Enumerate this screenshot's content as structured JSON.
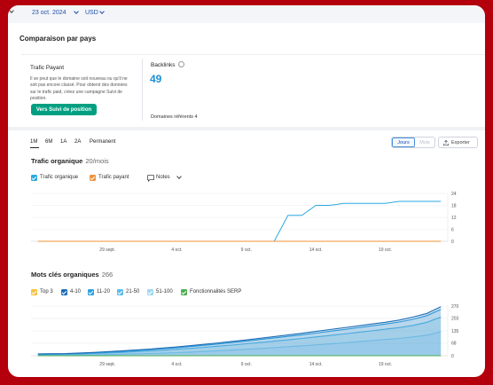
{
  "header": {
    "date": "23 oct. 2024",
    "currency": "USD"
  },
  "comparison": {
    "title": "Comparaison par pays"
  },
  "paid_traffic": {
    "title": "Trafic Payant",
    "description": "Il se peut que le domaine soit nouveau ou qu'il ne soit pas encore classé. Pour obtenir des données sur le trafic paid, créez une campagne Suivi de position.",
    "button_label": "Vers Suivi de position"
  },
  "backlinks": {
    "label": "Backlinks",
    "value": "49",
    "referring_label": "Domaines référents",
    "referring_value": "4"
  },
  "period_tabs": [
    "1M",
    "6M",
    "1A",
    "2A",
    "Permanent"
  ],
  "period_selected": "1M",
  "view_toggle": {
    "days": "Jours",
    "months": "Mois",
    "selected": "Jours"
  },
  "export_label": "Exporter",
  "traffic_chart": {
    "title": "Trafic organique",
    "subtitle": "20/mois",
    "legend": [
      {
        "label": "Trafic organique",
        "color": "#2aa8e0",
        "checked": true
      },
      {
        "label": "Trafic payant",
        "color": "#f0913a",
        "checked": true
      }
    ],
    "notes_label": "Notes"
  },
  "keywords_chart": {
    "title": "Mots clés organiques",
    "subtitle": "266",
    "legend": [
      {
        "label": "Top 3",
        "color": "#f5c242",
        "checked": true
      },
      {
        "label": "4-10",
        "color": "#1f6db5",
        "checked": true
      },
      {
        "label": "11-20",
        "color": "#2aa0de",
        "checked": true
      },
      {
        "label": "21-50",
        "color": "#5bbbe8",
        "checked": true
      },
      {
        "label": "51-100",
        "color": "#9fd8f2",
        "checked": true
      },
      {
        "label": "Fonctionnalités SERP",
        "color": "#4caf50",
        "checked": true
      }
    ]
  },
  "colors": {
    "accent": "#009f81",
    "link_blue": "#1a8fd6",
    "brand_frame": "#b3000c"
  },
  "chart_data": [
    {
      "type": "line",
      "title": "Trafic organique",
      "x_tick_labels": [
        "29 sept.",
        "4 oct.",
        "9 oct.",
        "14 oct.",
        "19 oct."
      ],
      "x": [
        "24 sept.",
        "25 sept.",
        "26 sept.",
        "27 sept.",
        "28 sept.",
        "29 sept.",
        "30 sept.",
        "1 oct.",
        "2 oct.",
        "3 oct.",
        "4 oct.",
        "5 oct.",
        "6 oct.",
        "7 oct.",
        "8 oct.",
        "9 oct.",
        "10 oct.",
        "11 oct.",
        "12 oct.",
        "13 oct.",
        "14 oct.",
        "15 oct.",
        "16 oct.",
        "17 oct.",
        "18 oct.",
        "19 oct.",
        "20 oct.",
        "21 oct.",
        "22 oct.",
        "23 oct."
      ],
      "ylim": [
        0,
        24
      ],
      "y_ticks": [
        0,
        6,
        12,
        18,
        24
      ],
      "series": [
        {
          "name": "Trafic organique",
          "color": "#2aa8e0",
          "values": [
            0,
            0,
            0,
            0,
            0,
            0,
            0,
            0,
            0,
            0,
            0,
            0,
            0,
            0,
            0,
            0,
            0,
            0,
            13,
            13,
            18,
            18,
            19,
            19,
            19,
            19,
            20,
            20,
            20,
            20
          ]
        },
        {
          "name": "Trafic payant",
          "color": "#f0913a",
          "values": [
            0,
            0,
            0,
            0,
            0,
            0,
            0,
            0,
            0,
            0,
            0,
            0,
            0,
            0,
            0,
            0,
            0,
            0,
            0,
            0,
            0,
            0,
            0,
            0,
            0,
            0,
            0,
            0,
            0,
            0
          ]
        }
      ]
    },
    {
      "type": "area",
      "title": "Mots clés organiques",
      "x_tick_labels": [
        "29 sept.",
        "4 oct.",
        "9 oct.",
        "14 oct.",
        "19 oct."
      ],
      "x": [
        "24 sept.",
        "25 sept.",
        "26 sept.",
        "27 sept.",
        "28 sept.",
        "29 sept.",
        "30 sept.",
        "1 oct.",
        "2 oct.",
        "3 oct.",
        "4 oct.",
        "5 oct.",
        "6 oct.",
        "7 oct.",
        "8 oct.",
        "9 oct.",
        "10 oct.",
        "11 oct.",
        "12 oct.",
        "13 oct.",
        "14 oct.",
        "15 oct.",
        "16 oct.",
        "17 oct.",
        "18 oct.",
        "19 oct.",
        "20 oct.",
        "21 oct.",
        "22 oct.",
        "23 oct."
      ],
      "ylim": [
        0,
        270
      ],
      "y_ticks": [
        0,
        68,
        135,
        203,
        270
      ],
      "series": [
        {
          "name": "Top 3",
          "color": "#f5c242",
          "values": [
            0,
            0,
            0,
            0,
            0,
            0,
            0,
            0,
            0,
            0,
            0,
            0,
            0,
            0,
            0,
            0,
            0,
            0,
            0,
            0,
            0,
            0,
            0,
            0,
            0,
            0,
            0,
            0,
            0,
            0
          ]
        },
        {
          "name": "4-10",
          "color": "#1f6db5",
          "values": [
            10,
            11,
            12,
            15,
            18,
            22,
            26,
            31,
            36,
            42,
            48,
            55,
            62,
            70,
            78,
            86,
            95,
            104,
            113,
            122,
            132,
            142,
            152,
            162,
            172,
            182,
            194,
            210,
            230,
            266
          ]
        },
        {
          "name": "11-20",
          "color": "#2aa0de",
          "values": [
            8,
            9,
            10,
            13,
            16,
            20,
            23,
            28,
            33,
            38,
            44,
            50,
            57,
            64,
            72,
            80,
            88,
            97,
            105,
            114,
            123,
            133,
            142,
            152,
            162,
            172,
            183,
            198,
            218,
            252
          ]
        },
        {
          "name": "21-50",
          "color": "#5bbbe8",
          "values": [
            6,
            7,
            8,
            10,
            12,
            15,
            18,
            22,
            26,
            30,
            35,
            40,
            46,
            52,
            58,
            65,
            72,
            79,
            86,
            94,
            102,
            110,
            118,
            127,
            135,
            144,
            153,
            165,
            182,
            210
          ]
        },
        {
          "name": "51-100",
          "color": "#9fd8f2",
          "values": [
            2,
            2,
            3,
            4,
            5,
            6,
            8,
            10,
            12,
            14,
            17,
            20,
            23,
            27,
            31,
            35,
            39,
            44,
            49,
            54,
            59,
            64,
            70,
            76,
            82,
            88,
            94,
            102,
            112,
            130
          ]
        },
        {
          "name": "Fonctionnalités SERP",
          "color": "#4caf50",
          "values": [
            0,
            0,
            0,
            0,
            0,
            0,
            0,
            0,
            0,
            0,
            0,
            0,
            0,
            0,
            0,
            0,
            0,
            0,
            0,
            0,
            0,
            0,
            0,
            0,
            0,
            0,
            0,
            0,
            0,
            0
          ]
        }
      ]
    }
  ]
}
